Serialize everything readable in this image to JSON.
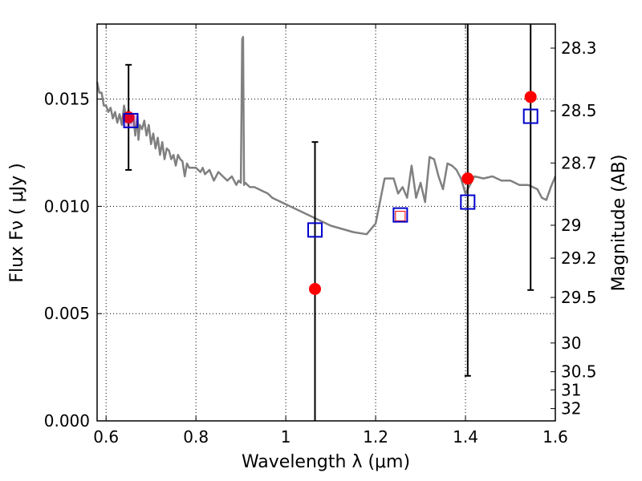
{
  "chart_data": {
    "type": "scatter",
    "title": "",
    "xlabel": "Wavelength  λ (μm)",
    "ylabel": "Flux  Fν  ( μJy )",
    "y2label": "Magnitude (AB)",
    "xlim": [
      0.58,
      1.6
    ],
    "ylim": [
      0.0,
      0.0185
    ],
    "grid": true,
    "x_ticks": [
      {
        "value": 0.6,
        "label": "0.6"
      },
      {
        "value": 0.8,
        "label": "0.8"
      },
      {
        "value": 1.0,
        "label": "1"
      },
      {
        "value": 1.2,
        "label": "1.2"
      },
      {
        "value": 1.4,
        "label": "1.4"
      },
      {
        "value": 1.6,
        "label": "1.6"
      }
    ],
    "y_ticks": [
      {
        "value": 0.0,
        "label": "0.000"
      },
      {
        "value": 0.005,
        "label": "0.005"
      },
      {
        "value": 0.01,
        "label": "0.010"
      },
      {
        "value": 0.015,
        "label": "0.015"
      }
    ],
    "y2_ticks": [
      {
        "value": 28.3,
        "label": "28.3"
      },
      {
        "value": 28.5,
        "label": "28.5"
      },
      {
        "value": 28.7,
        "label": "28.7"
      },
      {
        "value": 29.0,
        "label": "29"
      },
      {
        "value": 29.2,
        "label": "29.2"
      },
      {
        "value": 29.5,
        "label": "29.5"
      },
      {
        "value": 30.0,
        "label": "30"
      },
      {
        "value": 30.5,
        "label": "30.5"
      },
      {
        "value": 31.0,
        "label": "31"
      },
      {
        "value": 32.0,
        "label": "32"
      }
    ],
    "model_spectrum": {
      "color": "#808080",
      "x": [
        0.58,
        0.585,
        0.59,
        0.595,
        0.6,
        0.605,
        0.61,
        0.615,
        0.62,
        0.625,
        0.63,
        0.635,
        0.64,
        0.645,
        0.65,
        0.655,
        0.66,
        0.665,
        0.67,
        0.672,
        0.675,
        0.68,
        0.685,
        0.69,
        0.695,
        0.7,
        0.705,
        0.71,
        0.715,
        0.72,
        0.725,
        0.73,
        0.735,
        0.74,
        0.745,
        0.75,
        0.755,
        0.76,
        0.765,
        0.77,
        0.775,
        0.78,
        0.785,
        0.79,
        0.8,
        0.81,
        0.815,
        0.82,
        0.83,
        0.84,
        0.85,
        0.86,
        0.87,
        0.88,
        0.89,
        0.895,
        0.9,
        0.903,
        0.905,
        0.907,
        0.91,
        0.915,
        0.92,
        0.93,
        0.94,
        0.95,
        0.96,
        0.97,
        1.0,
        1.05,
        1.1,
        1.15,
        1.18,
        1.2,
        1.22,
        1.24,
        1.25,
        1.26,
        1.27,
        1.28,
        1.29,
        1.3,
        1.31,
        1.32,
        1.33,
        1.34,
        1.35,
        1.36,
        1.37,
        1.38,
        1.39,
        1.4,
        1.42,
        1.44,
        1.46,
        1.48,
        1.5,
        1.52,
        1.54,
        1.56,
        1.57,
        1.58,
        1.59,
        1.6
      ],
      "y": [
        0.0158,
        0.0153,
        0.0153,
        0.0147,
        0.0147,
        0.0144,
        0.0146,
        0.0141,
        0.0144,
        0.0139,
        0.0143,
        0.0138,
        0.0147,
        0.0141,
        0.0145,
        0.0139,
        0.0143,
        0.0133,
        0.0142,
        0.0131,
        0.0138,
        0.0136,
        0.014,
        0.0133,
        0.0138,
        0.0129,
        0.0134,
        0.0127,
        0.0132,
        0.0124,
        0.013,
        0.0122,
        0.0127,
        0.0126,
        0.0122,
        0.0124,
        0.0119,
        0.0124,
        0.0122,
        0.0121,
        0.0114,
        0.012,
        0.0118,
        0.0118,
        0.0118,
        0.0116,
        0.0118,
        0.0115,
        0.0117,
        0.0112,
        0.0116,
        0.0114,
        0.0112,
        0.0114,
        0.011,
        0.0112,
        0.0111,
        0.0178,
        0.0179,
        0.011,
        0.0111,
        0.011,
        0.0109,
        0.0109,
        0.0108,
        0.0107,
        0.0106,
        0.0104,
        0.0101,
        0.0096,
        0.0091,
        0.0088,
        0.0087,
        0.0092,
        0.0113,
        0.0113,
        0.0106,
        0.0109,
        0.0104,
        0.0119,
        0.0104,
        0.0111,
        0.0102,
        0.0123,
        0.0122,
        0.0114,
        0.0108,
        0.012,
        0.0119,
        0.0117,
        0.0113,
        0.0106,
        0.0114,
        0.0113,
        0.0114,
        0.0112,
        0.0112,
        0.011,
        0.011,
        0.0108,
        0.0104,
        0.0103,
        0.0109,
        0.0114
      ]
    },
    "observed": {
      "color": "#ff0000",
      "x": [
        0.65,
        1.065,
        1.255,
        1.405,
        1.545
      ],
      "y": [
        0.01415,
        0.00615,
        0.00955,
        0.0113,
        0.0151
      ],
      "err_low": [
        0.0117,
        0.0,
        null,
        0.0021,
        0.0061
      ],
      "err_high": [
        0.0166,
        0.013,
        null,
        0.0185,
        0.0185
      ],
      "open_marker_index": 2
    },
    "model_photometry": {
      "color": "#0000cc",
      "x": [
        0.655,
        1.065,
        1.255,
        1.405,
        1.545
      ],
      "y": [
        0.014,
        0.0089,
        0.0096,
        0.0102,
        0.0142
      ]
    }
  }
}
